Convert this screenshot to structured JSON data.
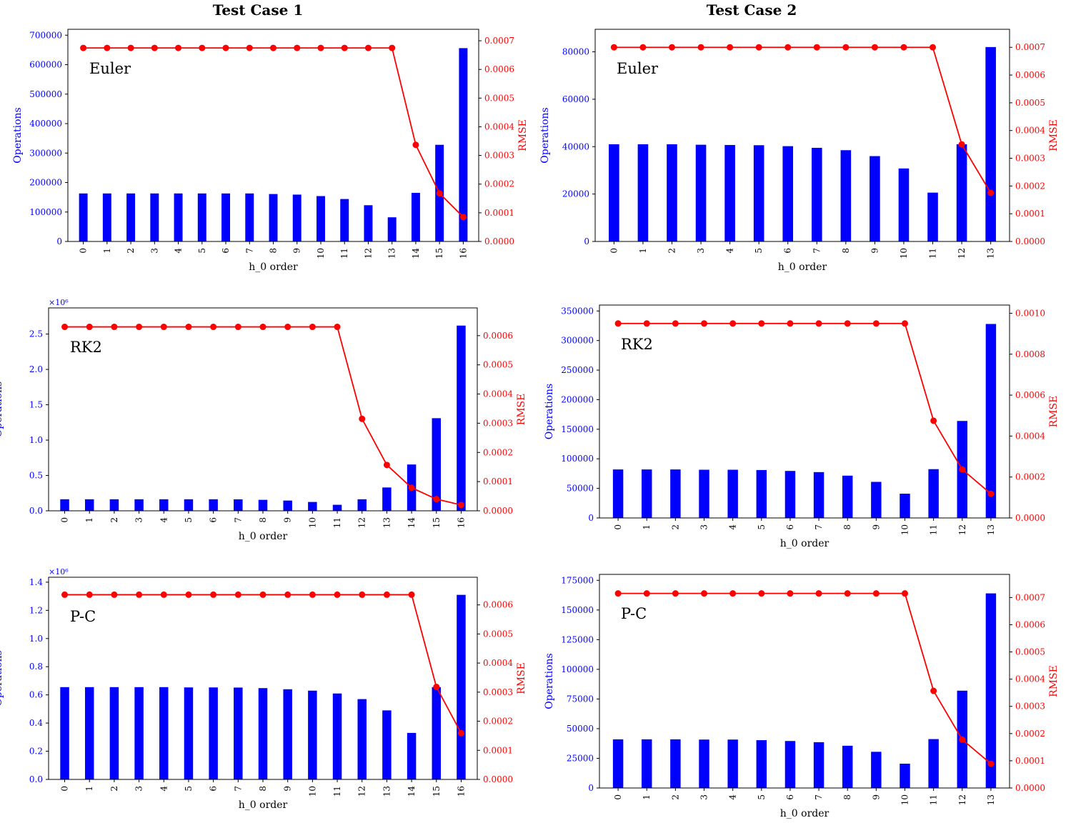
{
  "columns": {
    "case1_title": "Test Case 1",
    "case2_title": "Test Case 2"
  },
  "colors": {
    "bars": "#0000ff",
    "line": "#ff0000"
  },
  "chart_data": [
    {
      "id": "c1-euler",
      "type": "bar+line",
      "case": "Test Case 1",
      "method_label": "Euler",
      "xlabel": "h_0 order",
      "ylabel_left": "Operations",
      "ylabel_right": "RMSE",
      "categories": [
        "0",
        "1",
        "2",
        "3",
        "4",
        "5",
        "6",
        "7",
        "8",
        "9",
        "10",
        "11",
        "12",
        "13",
        "14",
        "15",
        "16"
      ],
      "series": [
        {
          "axis": "left",
          "kind": "bar",
          "values": [
            163000,
            163000,
            163000,
            163000,
            163000,
            163000,
            163000,
            163000,
            161000,
            159000,
            154000,
            144000,
            123000,
            82000,
            165000,
            328000,
            656000
          ]
        },
        {
          "axis": "right",
          "kind": "line",
          "values": [
            0.000675,
            0.000675,
            0.000675,
            0.000675,
            0.000675,
            0.000675,
            0.000675,
            0.000675,
            0.000675,
            0.000675,
            0.000675,
            0.000675,
            0.000675,
            0.000675,
            0.000337,
            0.000168,
            8.5e-05
          ]
        }
      ],
      "yleft": {
        "lim": [
          0,
          720000
        ],
        "ticks": [
          0,
          100000,
          200000,
          300000,
          400000,
          500000,
          600000,
          700000
        ],
        "labels": [
          "0",
          "100000",
          "200000",
          "300000",
          "400000",
          "500000",
          "600000",
          "700000"
        ],
        "offset": ""
      },
      "yright": {
        "lim": [
          0,
          0.00074
        ],
        "ticks": [
          0,
          0.0001,
          0.0002,
          0.0003,
          0.0004,
          0.0005,
          0.0006,
          0.0007
        ],
        "labels": [
          "0.0000",
          "0.0001",
          "0.0002",
          "0.0003",
          "0.0004",
          "0.0005",
          "0.0006",
          "0.0007"
        ]
      }
    },
    {
      "id": "c2-euler",
      "type": "bar+line",
      "case": "Test Case 2",
      "method_label": "Euler",
      "xlabel": "h_0 order",
      "ylabel_left": "Operations",
      "ylabel_right": "RMSE",
      "categories": [
        "0",
        "1",
        "2",
        "3",
        "4",
        "5",
        "6",
        "7",
        "8",
        "9",
        "10",
        "11",
        "12",
        "13"
      ],
      "series": [
        {
          "axis": "left",
          "kind": "bar",
          "values": [
            41000,
            41000,
            41000,
            40800,
            40700,
            40600,
            40200,
            39500,
            38500,
            36000,
            30800,
            20600,
            41000,
            82000
          ]
        },
        {
          "axis": "right",
          "kind": "line",
          "values": [
            0.0007,
            0.0007,
            0.0007,
            0.0007,
            0.0007,
            0.0007,
            0.0007,
            0.0007,
            0.0007,
            0.0007,
            0.0007,
            0.0007,
            0.00035,
            0.000175
          ]
        }
      ],
      "yleft": {
        "lim": [
          0,
          89500
        ],
        "ticks": [
          0,
          20000,
          40000,
          60000,
          80000
        ],
        "labels": [
          "0",
          "20000",
          "40000",
          "60000",
          "80000"
        ],
        "offset": ""
      },
      "yright": {
        "lim": [
          0,
          0.000765
        ],
        "ticks": [
          0,
          0.0001,
          0.0002,
          0.0003,
          0.0004,
          0.0005,
          0.0006,
          0.0007
        ],
        "labels": [
          "0.0000",
          "0.0001",
          "0.0002",
          "0.0003",
          "0.0004",
          "0.0005",
          "0.0006",
          "0.0007"
        ]
      }
    },
    {
      "id": "c1-rk2",
      "type": "bar+line",
      "case": "Test Case 1",
      "method_label": "RK2",
      "xlabel": "h_0 order",
      "ylabel_left": "Operations",
      "ylabel_right": "RMSE",
      "categories": [
        "0",
        "1",
        "2",
        "3",
        "4",
        "5",
        "6",
        "7",
        "8",
        "9",
        "10",
        "11",
        "12",
        "13",
        "14",
        "15",
        "16"
      ],
      "series": [
        {
          "axis": "left",
          "kind": "bar",
          "values": [
            0.163,
            0.163,
            0.163,
            0.163,
            0.163,
            0.163,
            0.163,
            0.162,
            0.155,
            0.145,
            0.125,
            0.085,
            0.163,
            0.33,
            0.655,
            1.31,
            2.62
          ]
        },
        {
          "axis": "right",
          "kind": "line",
          "values": [
            0.00063,
            0.00063,
            0.00063,
            0.00063,
            0.00063,
            0.00063,
            0.00063,
            0.00063,
            0.00063,
            0.00063,
            0.00063,
            0.00063,
            0.000315,
            0.000157,
            7.9e-05,
            4e-05,
            2e-05
          ]
        }
      ],
      "yleft": {
        "lim": [
          0,
          2.87
        ],
        "ticks": [
          0,
          0.5,
          1.0,
          1.5,
          2.0,
          2.5
        ],
        "labels": [
          "0.0",
          "0.5",
          "1.0",
          "1.5",
          "2.0",
          "2.5"
        ],
        "offset": "×10⁶"
      },
      "yright": {
        "lim": [
          0,
          0.000695
        ],
        "ticks": [
          0,
          0.0001,
          0.0002,
          0.0003,
          0.0004,
          0.0005,
          0.0006
        ],
        "labels": [
          "0.0000",
          "0.0001",
          "0.0002",
          "0.0003",
          "0.0004",
          "0.0005",
          "0.0006"
        ]
      }
    },
    {
      "id": "c2-rk2",
      "type": "bar+line",
      "case": "Test Case 2",
      "method_label": "RK2",
      "xlabel": "h_0 order",
      "ylabel_left": "Operations",
      "ylabel_right": "RMSE",
      "categories": [
        "0",
        "1",
        "2",
        "3",
        "4",
        "5",
        "6",
        "7",
        "8",
        "9",
        "10",
        "11",
        "12",
        "13"
      ],
      "series": [
        {
          "axis": "left",
          "kind": "bar",
          "values": [
            82000,
            82000,
            82000,
            81500,
            81500,
            81000,
            79500,
            77500,
            71500,
            61000,
            41000,
            82500,
            164000,
            328000
          ]
        },
        {
          "axis": "right",
          "kind": "line",
          "values": [
            0.00095,
            0.00095,
            0.00095,
            0.00095,
            0.00095,
            0.00095,
            0.00095,
            0.00095,
            0.00095,
            0.00095,
            0.00095,
            0.000475,
            0.000237,
            0.000118
          ]
        }
      ],
      "yleft": {
        "lim": [
          0,
          360000
        ],
        "ticks": [
          0,
          50000,
          100000,
          150000,
          200000,
          250000,
          300000,
          350000
        ],
        "labels": [
          "0",
          "50000",
          "100000",
          "150000",
          "200000",
          "250000",
          "300000",
          "350000"
        ],
        "offset": ""
      },
      "yright": {
        "lim": [
          0,
          0.00104
        ],
        "ticks": [
          0,
          0.0002,
          0.0004,
          0.0006,
          0.0008,
          0.001
        ],
        "labels": [
          "0.0000",
          "0.0002",
          "0.0004",
          "0.0006",
          "0.0008",
          "0.0010"
        ]
      }
    },
    {
      "id": "c1-pc",
      "type": "bar+line",
      "case": "Test Case 1",
      "method_label": "P-C",
      "xlabel": "h_0 order",
      "ylabel_left": "Operations",
      "ylabel_right": "RMSE",
      "categories": [
        "0",
        "1",
        "2",
        "3",
        "4",
        "5",
        "6",
        "7",
        "8",
        "9",
        "10",
        "11",
        "12",
        "13",
        "14",
        "15",
        "16"
      ],
      "series": [
        {
          "axis": "left",
          "kind": "bar",
          "values": [
            0.655,
            0.655,
            0.655,
            0.655,
            0.655,
            0.653,
            0.653,
            0.652,
            0.648,
            0.64,
            0.63,
            0.61,
            0.57,
            0.49,
            0.33,
            0.655,
            1.31
          ]
        },
        {
          "axis": "right",
          "kind": "line",
          "values": [
            0.000635,
            0.000635,
            0.000635,
            0.000635,
            0.000635,
            0.000635,
            0.000635,
            0.000635,
            0.000635,
            0.000635,
            0.000635,
            0.000635,
            0.000635,
            0.000635,
            0.000635,
            0.000318,
            0.000159
          ]
        }
      ],
      "yleft": {
        "lim": [
          0,
          1.435
        ],
        "ticks": [
          0,
          0.2,
          0.4,
          0.6,
          0.8,
          1.0,
          1.2,
          1.4
        ],
        "labels": [
          "0.0",
          "0.2",
          "0.4",
          "0.6",
          "0.8",
          "1.0",
          "1.2",
          "1.4"
        ],
        "offset": "×10⁶"
      },
      "yright": {
        "lim": [
          0,
          0.000695
        ],
        "ticks": [
          0,
          0.0001,
          0.0002,
          0.0003,
          0.0004,
          0.0005,
          0.0006
        ],
        "labels": [
          "0.0000",
          "0.0001",
          "0.0002",
          "0.0003",
          "0.0004",
          "0.0005",
          "0.0006"
        ]
      }
    },
    {
      "id": "c2-pc",
      "type": "bar+line",
      "case": "Test Case 2",
      "method_label": "P-C",
      "xlabel": "h_0 order",
      "ylabel_left": "Operations",
      "ylabel_right": "RMSE",
      "categories": [
        "0",
        "1",
        "2",
        "3",
        "4",
        "5",
        "6",
        "7",
        "8",
        "9",
        "10",
        "11",
        "12",
        "13"
      ],
      "series": [
        {
          "axis": "left",
          "kind": "bar",
          "values": [
            41000,
            41000,
            41000,
            40800,
            40800,
            40300,
            39600,
            38600,
            35600,
            30500,
            20500,
            41200,
            82000,
            164000
          ]
        },
        {
          "axis": "right",
          "kind": "line",
          "values": [
            0.000715,
            0.000715,
            0.000715,
            0.000715,
            0.000715,
            0.000715,
            0.000715,
            0.000715,
            0.000715,
            0.000715,
            0.000715,
            0.000357,
            0.000178,
            8.9e-05
          ]
        }
      ],
      "yleft": {
        "lim": [
          0,
          180000
        ],
        "ticks": [
          0,
          25000,
          50000,
          75000,
          100000,
          125000,
          150000,
          175000
        ],
        "labels": [
          "0",
          "25000",
          "50000",
          "75000",
          "100000",
          "125000",
          "150000",
          "175000"
        ],
        "offset": ""
      },
      "yright": {
        "lim": [
          0,
          0.000785
        ],
        "ticks": [
          0,
          0.0001,
          0.0002,
          0.0003,
          0.0004,
          0.0005,
          0.0006,
          0.0007
        ],
        "labels": [
          "0.0000",
          "0.0001",
          "0.0002",
          "0.0003",
          "0.0004",
          "0.0005",
          "0.0006",
          "0.0007"
        ]
      }
    }
  ]
}
